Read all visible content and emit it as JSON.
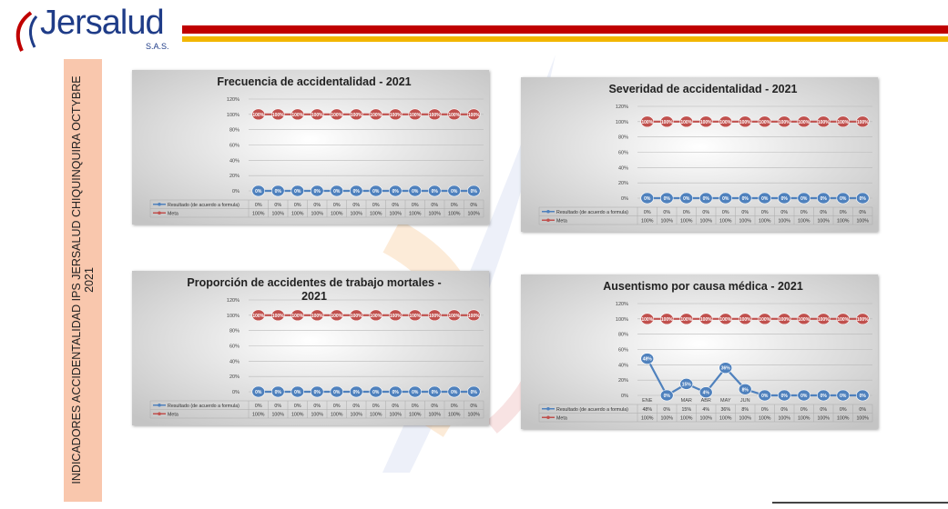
{
  "header": {
    "logo": "Jersalud",
    "logo_sub": "S.A.S.",
    "side_title": "INDICADORES ACCIDENTALIDAD IPS JERSALUD CHIQUINQUIRA OCTYBRE 2021"
  },
  "chart_data": [
    {
      "type": "line",
      "title": "Frecuencia de accidentalidad -  2021",
      "categories": [
        null,
        null,
        null,
        null,
        null,
        null,
        null,
        null,
        null,
        null,
        null,
        null
      ],
      "ylim": [
        0,
        120
      ],
      "yticks": [
        {
          "value": 0,
          "label": "0%"
        },
        {
          "value": 20,
          "label": "20%"
        },
        {
          "value": 40,
          "label": "40%"
        },
        {
          "value": 60,
          "label": "60%"
        },
        {
          "value": 80,
          "label": "80%"
        },
        {
          "value": 100,
          "label": "100%"
        },
        {
          "value": 120,
          "label": "120%"
        }
      ],
      "series": [
        {
          "name": "Resultado (de acuerdo a formula)",
          "color": "#4f81bd",
          "values": [
            0,
            0,
            0,
            0,
            0,
            0,
            0,
            0,
            0,
            0,
            0,
            0
          ],
          "value_labels": [
            "0%",
            "0%",
            "0%",
            "0%",
            "0%",
            "0%",
            "0%",
            "0%",
            "0%",
            "0%",
            "0%",
            "0%"
          ]
        },
        {
          "name": "Meta",
          "color": "#c0504d",
          "values": [
            100,
            100,
            100,
            100,
            100,
            100,
            100,
            100,
            100,
            100,
            100,
            100
          ],
          "value_labels": [
            "100%",
            "100%",
            "100%",
            "100%",
            "100%",
            "100%",
            "100%",
            "100%",
            "100%",
            "100%",
            "100%",
            "100%"
          ]
        }
      ]
    },
    {
      "type": "line",
      "title": "Severidad de accidentalidad -  2021",
      "categories": [
        null,
        null,
        null,
        null,
        null,
        null,
        null,
        null,
        null,
        null,
        null,
        null
      ],
      "ylim": [
        0,
        120
      ],
      "yticks": [
        {
          "value": 0,
          "label": "0%"
        },
        {
          "value": 20,
          "label": "20%"
        },
        {
          "value": 40,
          "label": "40%"
        },
        {
          "value": 60,
          "label": "60%"
        },
        {
          "value": 80,
          "label": "80%"
        },
        {
          "value": 100,
          "label": "100%"
        },
        {
          "value": 120,
          "label": "120%"
        }
      ],
      "series": [
        {
          "name": "Resultado (de acuerdo a formula)",
          "color": "#4f81bd",
          "values": [
            0,
            0,
            0,
            0,
            0,
            0,
            0,
            0,
            0,
            0,
            0,
            0
          ],
          "value_labels": [
            "0%",
            "0%",
            "0%",
            "0%",
            "0%",
            "0%",
            "0%",
            "0%",
            "0%",
            "0%",
            "0%",
            "0%"
          ]
        },
        {
          "name": "Meta",
          "color": "#c0504d",
          "values": [
            100,
            100,
            100,
            100,
            100,
            100,
            100,
            100,
            100,
            100,
            100,
            100
          ],
          "value_labels": [
            "100%",
            "100%",
            "100%",
            "100%",
            "100%",
            "100%",
            "100%",
            "100%",
            "100%",
            "100%",
            "100%",
            "100%"
          ]
        }
      ]
    },
    {
      "type": "line",
      "title": "Proporción de accidentes de trabajo mortales   -  2021",
      "categories": [
        null,
        null,
        null,
        null,
        null,
        null,
        null,
        null,
        null,
        null,
        null,
        null
      ],
      "ylim": [
        0,
        120
      ],
      "yticks": [
        {
          "value": 0,
          "label": "0%"
        },
        {
          "value": 20,
          "label": "20%"
        },
        {
          "value": 40,
          "label": "40%"
        },
        {
          "value": 60,
          "label": "60%"
        },
        {
          "value": 80,
          "label": "80%"
        },
        {
          "value": 100,
          "label": "100%"
        },
        {
          "value": 120,
          "label": "120%"
        }
      ],
      "series": [
        {
          "name": "Resultado (de acuerdo a formula)",
          "color": "#4f81bd",
          "values": [
            0,
            0,
            0,
            0,
            0,
            0,
            0,
            0,
            0,
            0,
            0,
            0
          ],
          "value_labels": [
            "0%",
            "0%",
            "0%",
            "0%",
            "0%",
            "0%",
            "0%",
            "0%",
            "0%",
            "0%",
            "0%",
            "0%"
          ]
        },
        {
          "name": "Meta",
          "color": "#c0504d",
          "values": [
            100,
            100,
            100,
            100,
            100,
            100,
            100,
            100,
            100,
            100,
            100,
            100
          ],
          "value_labels": [
            "100%",
            "100%",
            "100%",
            "100%",
            "100%",
            "100%",
            "100%",
            "100%",
            "100%",
            "100%",
            "100%",
            "100%"
          ]
        }
      ]
    },
    {
      "type": "line",
      "title": "Ausentismo por causa médica -  2021",
      "categories": [
        "ENE",
        null,
        "MAR",
        "ABR",
        "MAY",
        "JUN",
        null,
        null,
        null,
        null,
        null,
        null
      ],
      "ylim": [
        0,
        120
      ],
      "yticks": [
        {
          "value": 0,
          "label": "0%"
        },
        {
          "value": 20,
          "label": "20%"
        },
        {
          "value": 40,
          "label": "40%"
        },
        {
          "value": 60,
          "label": "60%"
        },
        {
          "value": 80,
          "label": "80%"
        },
        {
          "value": 100,
          "label": "100%"
        },
        {
          "value": 120,
          "label": "120%"
        }
      ],
      "series": [
        {
          "name": "Resultado (de acuerdo a formula)",
          "color": "#4f81bd",
          "values": [
            48,
            0,
            15,
            4,
            36,
            8,
            0,
            0,
            0,
            0,
            0,
            0
          ],
          "value_labels": [
            "48%",
            "0%",
            "15%",
            "4%",
            "36%",
            "8%",
            "0%",
            "0%",
            "0%",
            "0%",
            "0%",
            "0%"
          ]
        },
        {
          "name": "Meta",
          "color": "#c0504d",
          "values": [
            100,
            100,
            100,
            100,
            100,
            100,
            100,
            100,
            100,
            100,
            100,
            100
          ],
          "value_labels": [
            "100%",
            "100%",
            "100%",
            "100%",
            "100%",
            "100%",
            "100%",
            "100%",
            "100%",
            "100%",
            "100%",
            "100%"
          ]
        }
      ]
    }
  ]
}
